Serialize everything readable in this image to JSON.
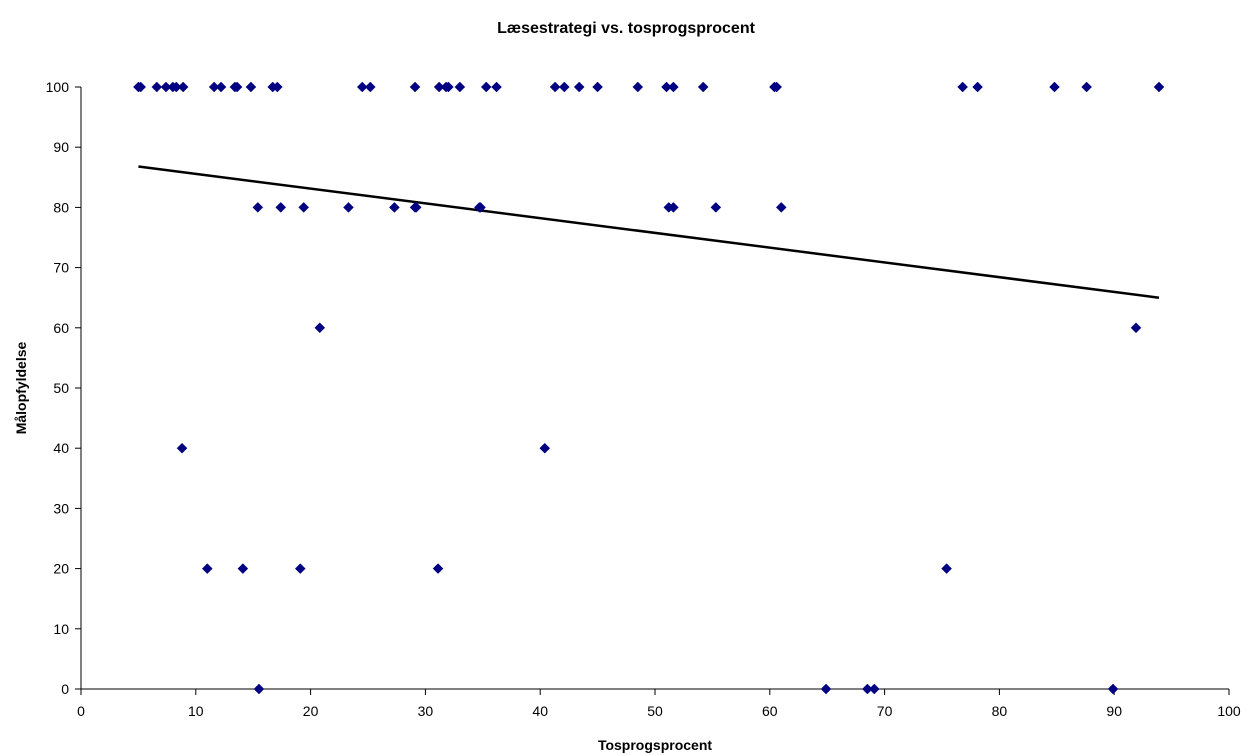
{
  "chart_data": {
    "type": "scatter",
    "title": "Læsestrategi vs. tosprogsprocent",
    "xlabel": "Tosprogsprocent",
    "ylabel": "Målopfyldelse",
    "xlim": [
      0,
      100
    ],
    "ylim": [
      0,
      100
    ],
    "xticks": [
      0,
      10,
      20,
      30,
      40,
      50,
      60,
      70,
      80,
      90,
      100
    ],
    "yticks": [
      0,
      10,
      20,
      30,
      40,
      50,
      60,
      70,
      80,
      90,
      100
    ],
    "grid": false,
    "legend": "none",
    "marker_color": "#000080",
    "trendline_color": "#000000",
    "series": [
      {
        "points": [
          [
            5.0,
            100
          ],
          [
            5.2,
            100
          ],
          [
            6.6,
            100
          ],
          [
            7.4,
            100
          ],
          [
            8.0,
            100
          ],
          [
            8.3,
            100
          ],
          [
            8.9,
            100
          ],
          [
            11.6,
            100
          ],
          [
            12.2,
            100
          ],
          [
            13.4,
            100
          ],
          [
            13.6,
            100
          ],
          [
            14.8,
            100
          ],
          [
            16.7,
            100
          ],
          [
            17.1,
            100
          ],
          [
            24.5,
            100
          ],
          [
            25.2,
            100
          ],
          [
            29.1,
            100
          ],
          [
            31.2,
            100
          ],
          [
            31.8,
            100
          ],
          [
            32.0,
            100
          ],
          [
            33.0,
            100
          ],
          [
            35.3,
            100
          ],
          [
            36.2,
            100
          ],
          [
            41.3,
            100
          ],
          [
            42.1,
            100
          ],
          [
            43.4,
            100
          ],
          [
            45.0,
            100
          ],
          [
            48.5,
            100
          ],
          [
            51.0,
            100
          ],
          [
            51.6,
            100
          ],
          [
            54.2,
            100
          ],
          [
            60.4,
            100
          ],
          [
            60.6,
            100
          ],
          [
            76.8,
            100
          ],
          [
            78.1,
            100
          ],
          [
            84.8,
            100
          ],
          [
            87.6,
            100
          ],
          [
            93.9,
            100
          ],
          [
            15.4,
            80
          ],
          [
            17.4,
            80
          ],
          [
            19.4,
            80
          ],
          [
            23.3,
            80
          ],
          [
            27.3,
            80
          ],
          [
            29.1,
            80
          ],
          [
            29.2,
            80
          ],
          [
            34.7,
            80
          ],
          [
            34.8,
            80
          ],
          [
            51.2,
            80
          ],
          [
            51.6,
            80
          ],
          [
            55.3,
            80
          ],
          [
            61.0,
            80
          ],
          [
            20.8,
            60
          ],
          [
            91.9,
            60
          ],
          [
            8.8,
            40
          ],
          [
            40.4,
            40
          ],
          [
            11.0,
            20
          ],
          [
            14.1,
            20
          ],
          [
            19.1,
            20
          ],
          [
            31.1,
            20
          ],
          [
            75.4,
            20
          ],
          [
            15.5,
            0
          ],
          [
            64.9,
            0
          ],
          [
            68.5,
            0
          ],
          [
            69.1,
            0
          ],
          [
            89.9,
            0
          ]
        ]
      }
    ],
    "trendline": {
      "x": [
        5.0,
        93.9
      ],
      "y": [
        86.8,
        65.0
      ]
    }
  }
}
